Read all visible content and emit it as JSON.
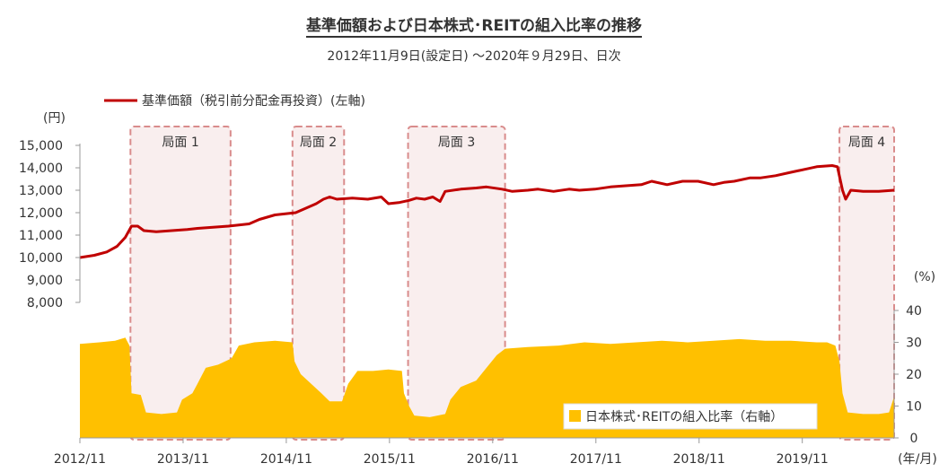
{
  "chart_data": {
    "type": "line",
    "title": "基準価額および日本株式･REITの組入比率の推移",
    "subtitle": "2012年11月9日(設定日) ～2020年９月29日、日次",
    "x_axis": {
      "label": "(年/月)",
      "range": [
        "2012/11",
        "2020/09"
      ],
      "tick_labels": [
        "2012/11",
        "2013/11",
        "2014/11",
        "2015/11",
        "2016/11",
        "2017/11",
        "2018/11",
        "2019/11"
      ]
    },
    "y_left": {
      "unit_label": "(円)",
      "range": [
        8000,
        15000
      ],
      "tick_labels": [
        "8,000",
        "9,000",
        "10,000",
        "11,000",
        "12,000",
        "13,000",
        "14,000",
        "15,000"
      ],
      "ticks": [
        8000,
        9000,
        10000,
        11000,
        12000,
        13000,
        14000,
        15000
      ]
    },
    "y_right": {
      "unit_label": "(%)",
      "range": [
        0,
        40
      ],
      "tick_labels": [
        "0",
        "10",
        "20",
        "30",
        "40"
      ],
      "ticks": [
        0,
        10,
        20,
        30,
        40
      ]
    },
    "legend": {
      "line_label": "基準価額（税引前分配金再投資）(左軸)",
      "area_label": "日本株式･REITの組入比率（右軸）",
      "line_placement": "top-left",
      "area_placement": "bottom-right"
    },
    "phases": [
      {
        "label": "局面 1",
        "start": 2013.35,
        "end": 2014.32
      },
      {
        "label": "局面 2",
        "start": 2014.92,
        "end": 2015.42
      },
      {
        "label": "局面 3",
        "start": 2016.04,
        "end": 2016.98
      },
      {
        "label": "局面 4",
        "start": 2020.22,
        "end": 2020.75
      }
    ],
    "series": [
      {
        "name": "基準価額（税引前分配金再投資）",
        "type": "line",
        "axis": "left",
        "color": "#c00000",
        "points": [
          [
            2012.86,
            10000
          ],
          [
            2013.0,
            10100
          ],
          [
            2013.12,
            10250
          ],
          [
            2013.22,
            10500
          ],
          [
            2013.3,
            10900
          ],
          [
            2013.36,
            11400
          ],
          [
            2013.42,
            11400
          ],
          [
            2013.48,
            11200
          ],
          [
            2013.6,
            11150
          ],
          [
            2013.75,
            11200
          ],
          [
            2013.9,
            11250
          ],
          [
            2014.0,
            11300
          ],
          [
            2014.15,
            11350
          ],
          [
            2014.3,
            11400
          ],
          [
            2014.5,
            11500
          ],
          [
            2014.6,
            11700
          ],
          [
            2014.75,
            11900
          ],
          [
            2014.95,
            12000
          ],
          [
            2015.05,
            12200
          ],
          [
            2015.15,
            12400
          ],
          [
            2015.22,
            12600
          ],
          [
            2015.28,
            12700
          ],
          [
            2015.35,
            12600
          ],
          [
            2015.5,
            12650
          ],
          [
            2015.65,
            12600
          ],
          [
            2015.78,
            12700
          ],
          [
            2015.85,
            12400
          ],
          [
            2015.95,
            12450
          ],
          [
            2016.05,
            12550
          ],
          [
            2016.12,
            12650
          ],
          [
            2016.2,
            12600
          ],
          [
            2016.28,
            12700
          ],
          [
            2016.35,
            12500
          ],
          [
            2016.4,
            12950
          ],
          [
            2016.55,
            13050
          ],
          [
            2016.7,
            13100
          ],
          [
            2016.8,
            13150
          ],
          [
            2016.95,
            13050
          ],
          [
            2017.05,
            12950
          ],
          [
            2017.2,
            13000
          ],
          [
            2017.3,
            13050
          ],
          [
            2017.45,
            12950
          ],
          [
            2017.6,
            13050
          ],
          [
            2017.7,
            13000
          ],
          [
            2017.85,
            13050
          ],
          [
            2018.0,
            13150
          ],
          [
            2018.15,
            13200
          ],
          [
            2018.3,
            13250
          ],
          [
            2018.4,
            13400
          ],
          [
            2018.55,
            13250
          ],
          [
            2018.7,
            13400
          ],
          [
            2018.85,
            13400
          ],
          [
            2019.0,
            13250
          ],
          [
            2019.1,
            13350
          ],
          [
            2019.2,
            13400
          ],
          [
            2019.35,
            13550
          ],
          [
            2019.45,
            13550
          ],
          [
            2019.6,
            13650
          ],
          [
            2019.75,
            13800
          ],
          [
            2019.9,
            13950
          ],
          [
            2020.0,
            14050
          ],
          [
            2020.15,
            14100
          ],
          [
            2020.2,
            14050
          ],
          [
            2020.25,
            13000
          ],
          [
            2020.28,
            12600
          ],
          [
            2020.33,
            13000
          ],
          [
            2020.45,
            12950
          ],
          [
            2020.6,
            12950
          ],
          [
            2020.75,
            13000
          ]
        ]
      },
      {
        "name": "日本株式･REITの組入比率",
        "type": "area",
        "axis": "right",
        "color": "#ffc000",
        "points": [
          [
            2012.86,
            29.5
          ],
          [
            2013.05,
            30
          ],
          [
            2013.2,
            30.5
          ],
          [
            2013.3,
            31.5
          ],
          [
            2013.34,
            29
          ],
          [
            2013.36,
            14
          ],
          [
            2013.45,
            13.5
          ],
          [
            2013.5,
            8
          ],
          [
            2013.65,
            7.5
          ],
          [
            2013.8,
            8
          ],
          [
            2013.85,
            12
          ],
          [
            2013.95,
            14
          ],
          [
            2014.0,
            17
          ],
          [
            2014.08,
            22
          ],
          [
            2014.2,
            23
          ],
          [
            2014.33,
            25
          ],
          [
            2014.4,
            29
          ],
          [
            2014.55,
            30
          ],
          [
            2014.75,
            30.5
          ],
          [
            2014.92,
            30
          ],
          [
            2014.94,
            24
          ],
          [
            2015.0,
            20
          ],
          [
            2015.1,
            17
          ],
          [
            2015.2,
            14
          ],
          [
            2015.28,
            11.5
          ],
          [
            2015.4,
            11.5
          ],
          [
            2015.46,
            17
          ],
          [
            2015.55,
            21
          ],
          [
            2015.7,
            21
          ],
          [
            2015.85,
            21.5
          ],
          [
            2015.98,
            21
          ],
          [
            2016.0,
            14
          ],
          [
            2016.05,
            10
          ],
          [
            2016.1,
            7
          ],
          [
            2016.25,
            6.5
          ],
          [
            2016.4,
            7.5
          ],
          [
            2016.45,
            12
          ],
          [
            2016.55,
            16
          ],
          [
            2016.7,
            18
          ],
          [
            2016.8,
            22
          ],
          [
            2016.9,
            26
          ],
          [
            2016.98,
            28
          ],
          [
            2017.2,
            28.5
          ],
          [
            2017.5,
            29
          ],
          [
            2017.75,
            30
          ],
          [
            2018.0,
            29.5
          ],
          [
            2018.25,
            30
          ],
          [
            2018.5,
            30.5
          ],
          [
            2018.75,
            30
          ],
          [
            2019.0,
            30.5
          ],
          [
            2019.25,
            31
          ],
          [
            2019.5,
            30.5
          ],
          [
            2019.75,
            30.5
          ],
          [
            2020.0,
            30
          ],
          [
            2020.1,
            30
          ],
          [
            2020.18,
            29
          ],
          [
            2020.22,
            24
          ],
          [
            2020.25,
            14
          ],
          [
            2020.3,
            8
          ],
          [
            2020.45,
            7.5
          ],
          [
            2020.6,
            7.5
          ],
          [
            2020.7,
            8
          ],
          [
            2020.75,
            13
          ]
        ]
      }
    ]
  }
}
